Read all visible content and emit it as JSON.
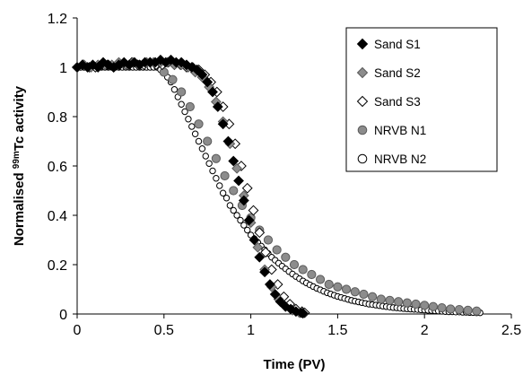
{
  "chart_data": {
    "type": "scatter",
    "xlabel": "Time (PV)",
    "ylabel_parts": {
      "pre": "Normalised ",
      "sup": "99m",
      "post": "Tc activity"
    },
    "xlim": [
      0,
      2.5
    ],
    "ylim": [
      0,
      1.2
    ],
    "x_ticks": [
      "0",
      "0.5",
      "1",
      "1.5",
      "2",
      "2.5"
    ],
    "y_ticks": [
      "0",
      "0.2",
      "0.4",
      "0.6",
      "0.8",
      "1",
      "1.2"
    ],
    "grid": false,
    "legend_placement": "top-right",
    "series": [
      {
        "name": "Sand S1",
        "marker": "diamond",
        "fill": "#000000",
        "stroke": "#000000",
        "x": [
          0.0,
          0.03,
          0.06,
          0.09,
          0.12,
          0.15,
          0.18,
          0.21,
          0.24,
          0.27,
          0.3,
          0.33,
          0.36,
          0.39,
          0.42,
          0.45,
          0.48,
          0.51,
          0.54,
          0.57,
          0.6,
          0.63,
          0.66,
          0.69,
          0.72,
          0.75,
          0.78,
          0.81,
          0.84,
          0.87,
          0.9,
          0.93,
          0.96,
          0.99,
          1.02,
          1.05,
          1.08,
          1.11,
          1.14,
          1.17,
          1.2,
          1.23,
          1.26,
          1.29,
          1.3
        ],
        "y": [
          1.0,
          1.01,
          1.0,
          1.01,
          1.0,
          1.02,
          1.01,
          1.0,
          1.01,
          1.02,
          1.01,
          1.02,
          1.01,
          1.02,
          1.02,
          1.02,
          1.03,
          1.02,
          1.03,
          1.02,
          1.02,
          1.01,
          1.0,
          0.99,
          0.97,
          0.94,
          0.9,
          0.84,
          0.77,
          0.7,
          0.62,
          0.54,
          0.46,
          0.38,
          0.3,
          0.23,
          0.17,
          0.12,
          0.08,
          0.05,
          0.03,
          0.02,
          0.01,
          0.005,
          0.003
        ]
      },
      {
        "name": "Sand S2",
        "marker": "diamond",
        "fill": "#8c8c8c",
        "stroke": "#5a5a5a",
        "x": [
          0.0,
          0.04,
          0.08,
          0.12,
          0.16,
          0.2,
          0.24,
          0.28,
          0.32,
          0.36,
          0.4,
          0.44,
          0.48,
          0.52,
          0.56,
          0.6,
          0.64,
          0.68,
          0.72,
          0.76,
          0.8,
          0.84,
          0.88,
          0.92,
          0.96,
          1.0,
          1.04,
          1.08,
          1.12,
          1.16,
          1.2,
          1.24,
          1.28
        ],
        "y": [
          1.0,
          1.01,
          1.0,
          1.01,
          1.01,
          1.01,
          1.02,
          1.01,
          1.02,
          1.01,
          1.02,
          1.02,
          1.02,
          1.02,
          1.01,
          1.01,
          1.0,
          0.98,
          0.96,
          0.92,
          0.86,
          0.78,
          0.69,
          0.59,
          0.48,
          0.37,
          0.27,
          0.18,
          0.11,
          0.06,
          0.03,
          0.015,
          0.005
        ]
      },
      {
        "name": "Sand S3",
        "marker": "diamond",
        "fill": "#ffffff",
        "stroke": "#000000",
        "x": [
          0.0,
          0.035,
          0.07,
          0.105,
          0.14,
          0.175,
          0.21,
          0.245,
          0.28,
          0.315,
          0.35,
          0.385,
          0.42,
          0.455,
          0.49,
          0.525,
          0.56,
          0.595,
          0.63,
          0.665,
          0.7,
          0.735,
          0.77,
          0.805,
          0.84,
          0.875,
          0.91,
          0.945,
          0.98,
          1.015,
          1.05,
          1.085,
          1.12,
          1.155,
          1.19,
          1.225,
          1.26,
          1.295,
          1.31
        ],
        "y": [
          1.0,
          1.01,
          1.0,
          1.0,
          1.01,
          1.01,
          1.0,
          1.01,
          1.01,
          1.02,
          1.01,
          1.01,
          1.02,
          1.01,
          1.01,
          1.02,
          1.01,
          1.01,
          1.0,
          1.0,
          0.99,
          0.97,
          0.94,
          0.9,
          0.84,
          0.77,
          0.69,
          0.6,
          0.51,
          0.42,
          0.33,
          0.25,
          0.18,
          0.12,
          0.07,
          0.04,
          0.02,
          0.01,
          0.005
        ]
      },
      {
        "name": "NRVB N1",
        "marker": "circle",
        "fill": "#8c8c8c",
        "stroke": "#5a5a5a",
        "x": [
          0.5,
          0.55,
          0.6,
          0.65,
          0.7,
          0.75,
          0.8,
          0.85,
          0.9,
          0.95,
          1.0,
          1.05,
          1.1,
          1.15,
          1.2,
          1.25,
          1.3,
          1.35,
          1.4,
          1.45,
          1.5,
          1.55,
          1.6,
          1.65,
          1.7,
          1.75,
          1.8,
          1.85,
          1.9,
          1.95,
          2.0,
          2.05,
          2.1,
          2.15,
          2.2,
          2.25,
          2.3
        ],
        "y": [
          0.98,
          0.95,
          0.9,
          0.84,
          0.77,
          0.7,
          0.63,
          0.56,
          0.5,
          0.44,
          0.39,
          0.34,
          0.3,
          0.26,
          0.23,
          0.2,
          0.18,
          0.16,
          0.14,
          0.12,
          0.11,
          0.1,
          0.09,
          0.08,
          0.07,
          0.06,
          0.055,
          0.05,
          0.045,
          0.04,
          0.035,
          0.03,
          0.025,
          0.02,
          0.018,
          0.015,
          0.012
        ]
      },
      {
        "name": "NRVB N2",
        "marker": "circle",
        "fill": "#ffffff",
        "stroke": "#000000",
        "x": [
          0.0,
          0.02,
          0.04,
          0.06,
          0.08,
          0.1,
          0.12,
          0.14,
          0.16,
          0.18,
          0.2,
          0.22,
          0.24,
          0.26,
          0.28,
          0.3,
          0.32,
          0.34,
          0.36,
          0.38,
          0.4,
          0.42,
          0.44,
          0.46,
          0.48,
          0.5,
          0.52,
          0.54,
          0.56,
          0.58,
          0.6,
          0.62,
          0.64,
          0.66,
          0.68,
          0.7,
          0.72,
          0.74,
          0.76,
          0.78,
          0.8,
          0.82,
          0.84,
          0.86,
          0.88,
          0.9,
          0.92,
          0.94,
          0.96,
          0.98,
          1.0,
          1.02,
          1.04,
          1.06,
          1.08,
          1.1,
          1.12,
          1.14,
          1.16,
          1.18,
          1.2,
          1.22,
          1.24,
          1.26,
          1.28,
          1.3,
          1.32,
          1.34,
          1.36,
          1.38,
          1.4,
          1.42,
          1.44,
          1.46,
          1.48,
          1.5,
          1.52,
          1.54,
          1.56,
          1.58,
          1.6,
          1.62,
          1.64,
          1.66,
          1.68,
          1.7,
          1.72,
          1.74,
          1.76,
          1.78,
          1.8,
          1.82,
          1.84,
          1.86,
          1.88,
          1.9,
          1.92,
          1.94,
          1.96,
          1.98,
          2.0,
          2.02,
          2.04,
          2.06,
          2.08,
          2.1,
          2.12,
          2.14,
          2.16,
          2.18,
          2.2,
          2.22,
          2.24,
          2.26,
          2.28,
          2.3,
          2.32
        ],
        "y": [
          1.0,
          1.0,
          1.0,
          1.0,
          1.0,
          1.0,
          1.0,
          1.0,
          1.0,
          1.0,
          1.0,
          1.0,
          1.0,
          1.0,
          1.0,
          1.0,
          1.0,
          1.0,
          1.0,
          1.0,
          1.0,
          1.0,
          1.0,
          1.0,
          0.99,
          0.98,
          0.96,
          0.94,
          0.91,
          0.88,
          0.85,
          0.82,
          0.79,
          0.76,
          0.73,
          0.7,
          0.67,
          0.64,
          0.61,
          0.58,
          0.55,
          0.52,
          0.49,
          0.47,
          0.44,
          0.42,
          0.4,
          0.38,
          0.36,
          0.34,
          0.32,
          0.305,
          0.29,
          0.275,
          0.26,
          0.245,
          0.23,
          0.218,
          0.206,
          0.194,
          0.183,
          0.172,
          0.162,
          0.152,
          0.143,
          0.134,
          0.126,
          0.118,
          0.111,
          0.104,
          0.098,
          0.092,
          0.086,
          0.081,
          0.076,
          0.071,
          0.067,
          0.063,
          0.059,
          0.055,
          0.052,
          0.049,
          0.046,
          0.043,
          0.04,
          0.038,
          0.036,
          0.034,
          0.032,
          0.03,
          0.028,
          0.026,
          0.025,
          0.023,
          0.022,
          0.021,
          0.02,
          0.019,
          0.018,
          0.017,
          0.016,
          0.015,
          0.014,
          0.013,
          0.012,
          0.011,
          0.01,
          0.009,
          0.009,
          0.008,
          0.008,
          0.007,
          0.007,
          0.006,
          0.006,
          0.005,
          0.005
        ]
      }
    ]
  }
}
